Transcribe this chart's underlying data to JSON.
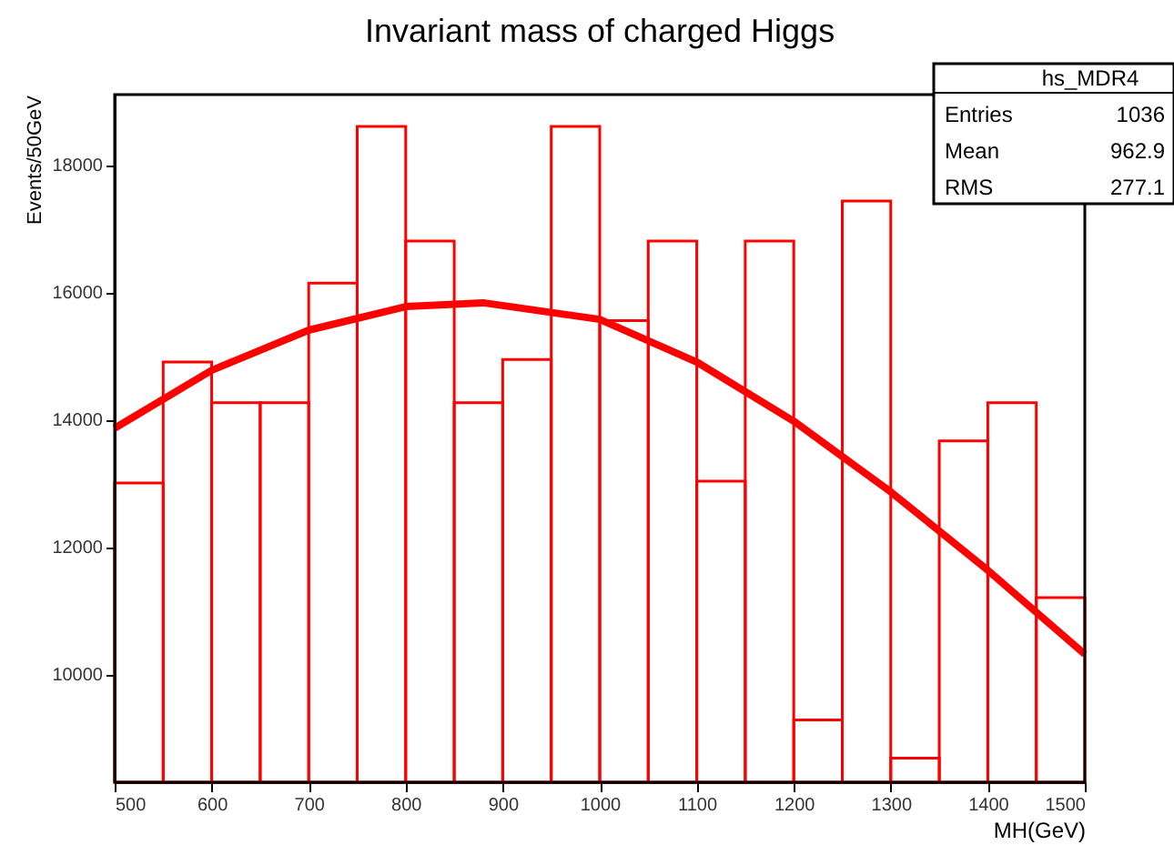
{
  "chart_data": {
    "type": "histogram",
    "title": "Invariant mass of charged Higgs",
    "xlabel": "MH(GeV)",
    "ylabel": "Events/50GeV",
    "xlim": [
      500,
      1500
    ],
    "xticks": [
      500,
      600,
      700,
      800,
      900,
      1000,
      1100,
      1200,
      1300,
      1400,
      1500
    ],
    "ylim": [
      8300,
      19100
    ],
    "yticks": [
      10000,
      12000,
      14000,
      16000,
      18000
    ],
    "series": [
      {
        "color": "#ff0000",
        "bins": [
          500,
          550,
          600,
          650,
          700,
          750,
          800,
          850,
          900,
          950,
          1000,
          1050,
          1100,
          1150,
          1200,
          1250,
          1300,
          1350,
          1400,
          1450,
          1500
        ],
        "values": [
          13000,
          14900,
          14260,
          14260,
          16140,
          18600,
          16800,
          14260,
          14940,
          18600,
          15550,
          16800,
          13030,
          16800,
          9280,
          17430,
          8680,
          13660,
          14260,
          11200
        ]
      },
      {
        "type": "line",
        "color": "#ff0000",
        "x": [
          500,
          600,
          700,
          800,
          880,
          1000,
          1100,
          1200,
          1300,
          1400,
          1500
        ],
        "values": [
          13860,
          14770,
          15400,
          15770,
          15830,
          15570,
          14900,
          13970,
          12860,
          11630,
          10310
        ]
      }
    ],
    "annotations": [
      "hs_MDR4",
      "Entries",
      "1036",
      "Mean",
      "962.9",
      "RMS",
      "277.1"
    ]
  }
}
